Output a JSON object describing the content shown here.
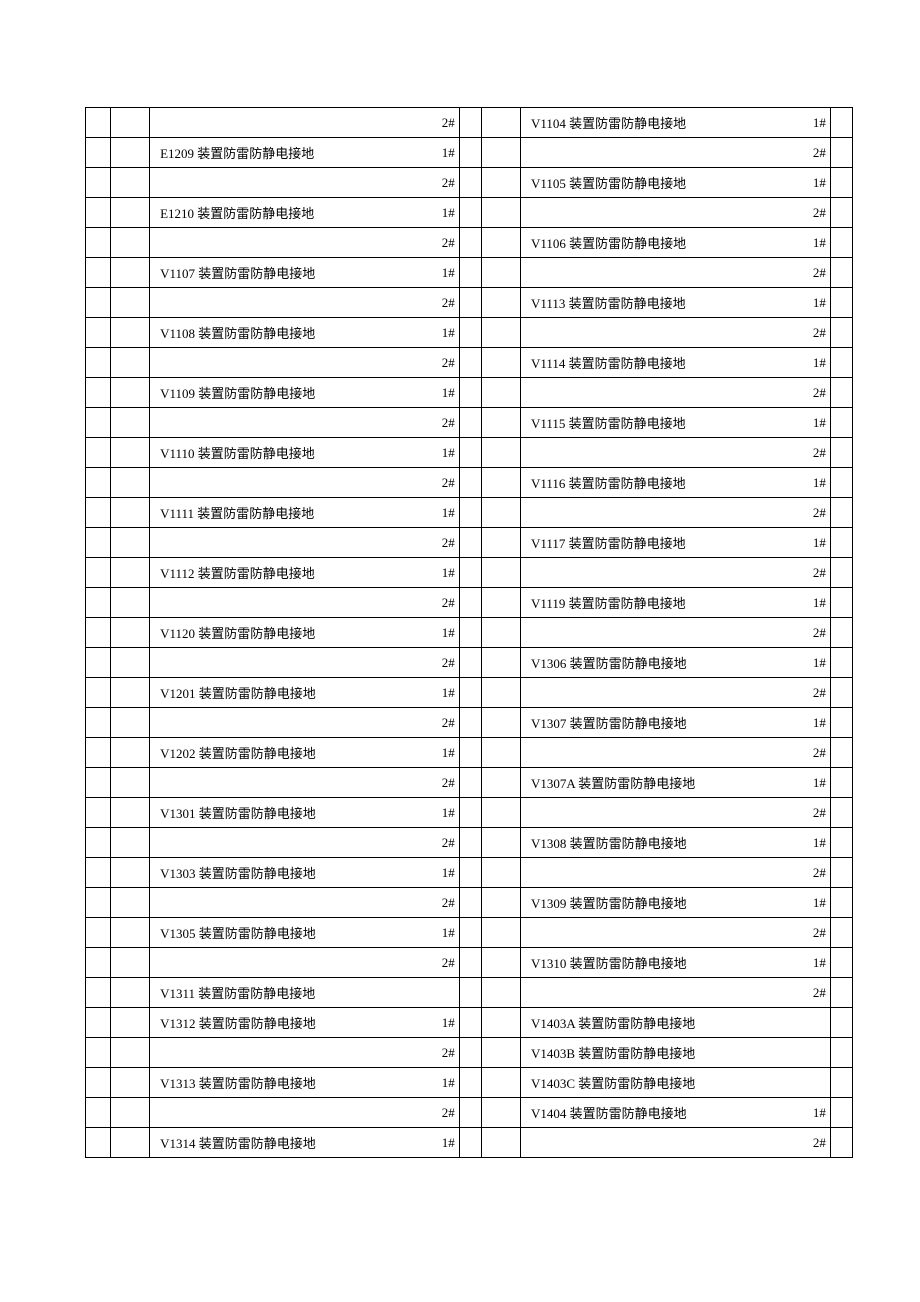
{
  "rows": [
    {
      "left": {
        "label": "",
        "tag": "2#"
      },
      "right": {
        "label": "V1104 装置防雷防静电接地",
        "tag": "1#"
      }
    },
    {
      "left": {
        "label": "E1209 装置防雷防静电接地",
        "tag": "1#"
      },
      "right": {
        "label": "",
        "tag": "2#"
      }
    },
    {
      "left": {
        "label": "",
        "tag": "2#"
      },
      "right": {
        "label": "V1105 装置防雷防静电接地",
        "tag": "1#"
      }
    },
    {
      "left": {
        "label": "E1210 装置防雷防静电接地",
        "tag": "1#"
      },
      "right": {
        "label": "",
        "tag": "2#"
      }
    },
    {
      "left": {
        "label": "",
        "tag": "2#"
      },
      "right": {
        "label": "V1106 装置防雷防静电接地",
        "tag": "1#"
      }
    },
    {
      "left": {
        "label": "V1107 装置防雷防静电接地",
        "tag": "1#"
      },
      "right": {
        "label": "",
        "tag": "2#"
      }
    },
    {
      "left": {
        "label": "",
        "tag": "2#"
      },
      "right": {
        "label": "V1113 装置防雷防静电接地",
        "tag": "1#"
      }
    },
    {
      "left": {
        "label": "V1108 装置防雷防静电接地",
        "tag": "1#"
      },
      "right": {
        "label": "",
        "tag": "2#"
      }
    },
    {
      "left": {
        "label": "",
        "tag": "2#"
      },
      "right": {
        "label": "V1114 装置防雷防静电接地",
        "tag": "1#"
      }
    },
    {
      "left": {
        "label": "V1109 装置防雷防静电接地",
        "tag": "1#"
      },
      "right": {
        "label": "",
        "tag": "2#"
      }
    },
    {
      "left": {
        "label": "",
        "tag": "2#"
      },
      "right": {
        "label": "V1115 装置防雷防静电接地",
        "tag": "1#"
      }
    },
    {
      "left": {
        "label": "V1110 装置防雷防静电接地",
        "tag": "1#"
      },
      "right": {
        "label": "",
        "tag": "2#"
      }
    },
    {
      "left": {
        "label": "",
        "tag": "2#"
      },
      "right": {
        "label": "V1116 装置防雷防静电接地",
        "tag": "1#"
      }
    },
    {
      "left": {
        "label": "V1111 装置防雷防静电接地",
        "tag": "1#"
      },
      "right": {
        "label": "",
        "tag": "2#"
      }
    },
    {
      "left": {
        "label": "",
        "tag": "2#"
      },
      "right": {
        "label": "V1117 装置防雷防静电接地",
        "tag": "1#"
      }
    },
    {
      "left": {
        "label": "V1112 装置防雷防静电接地",
        "tag": "1#"
      },
      "right": {
        "label": "",
        "tag": "2#"
      }
    },
    {
      "left": {
        "label": "",
        "tag": "2#"
      },
      "right": {
        "label": "V1119 装置防雷防静电接地",
        "tag": "1#"
      }
    },
    {
      "left": {
        "label": "V1120 装置防雷防静电接地",
        "tag": "1#"
      },
      "right": {
        "label": "",
        "tag": "2#"
      }
    },
    {
      "left": {
        "label": "",
        "tag": "2#"
      },
      "right": {
        "label": "V1306 装置防雷防静电接地",
        "tag": "1#"
      }
    },
    {
      "left": {
        "label": "V1201 装置防雷防静电接地",
        "tag": "1#"
      },
      "right": {
        "label": "",
        "tag": "2#"
      }
    },
    {
      "left": {
        "label": "",
        "tag": "2#"
      },
      "right": {
        "label": "V1307 装置防雷防静电接地",
        "tag": "1#"
      }
    },
    {
      "left": {
        "label": "V1202 装置防雷防静电接地",
        "tag": "1#"
      },
      "right": {
        "label": "",
        "tag": "2#"
      }
    },
    {
      "left": {
        "label": "",
        "tag": "2#"
      },
      "right": {
        "label": "V1307A 装置防雷防静电接地",
        "tag": "1#"
      }
    },
    {
      "left": {
        "label": "V1301 装置防雷防静电接地",
        "tag": "1#"
      },
      "right": {
        "label": "",
        "tag": "2#"
      }
    },
    {
      "left": {
        "label": "",
        "tag": "2#"
      },
      "right": {
        "label": "V1308 装置防雷防静电接地",
        "tag": "1#"
      }
    },
    {
      "left": {
        "label": "V1303 装置防雷防静电接地",
        "tag": "1#"
      },
      "right": {
        "label": "",
        "tag": "2#"
      }
    },
    {
      "left": {
        "label": "",
        "tag": "2#"
      },
      "right": {
        "label": "V1309 装置防雷防静电接地",
        "tag": "1#"
      }
    },
    {
      "left": {
        "label": "V1305 装置防雷防静电接地",
        "tag": "1#"
      },
      "right": {
        "label": "",
        "tag": "2#"
      }
    },
    {
      "left": {
        "label": "",
        "tag": "2#"
      },
      "right": {
        "label": "V1310 装置防雷防静电接地",
        "tag": "1#"
      }
    },
    {
      "left": {
        "label": "V1311 装置防雷防静电接地",
        "tag": ""
      },
      "right": {
        "label": "",
        "tag": "2#"
      }
    },
    {
      "left": {
        "label": "V1312 装置防雷防静电接地",
        "tag": "1#"
      },
      "right": {
        "label": "V1403A 装置防雷防静电接地",
        "tag": ""
      }
    },
    {
      "left": {
        "label": "",
        "tag": "2#"
      },
      "right": {
        "label": "V1403B 装置防雷防静电接地",
        "tag": ""
      }
    },
    {
      "left": {
        "label": "V1313 装置防雷防静电接地",
        "tag": "1#"
      },
      "right": {
        "label": "V1403C 装置防雷防静电接地",
        "tag": ""
      }
    },
    {
      "left": {
        "label": "",
        "tag": "2#"
      },
      "right": {
        "label": "V1404 装置防雷防静电接地",
        "tag": "1#"
      }
    },
    {
      "left": {
        "label": "V1314 装置防雷防静电接地",
        "tag": "1#"
      },
      "right": {
        "label": "",
        "tag": "2#"
      }
    }
  ]
}
